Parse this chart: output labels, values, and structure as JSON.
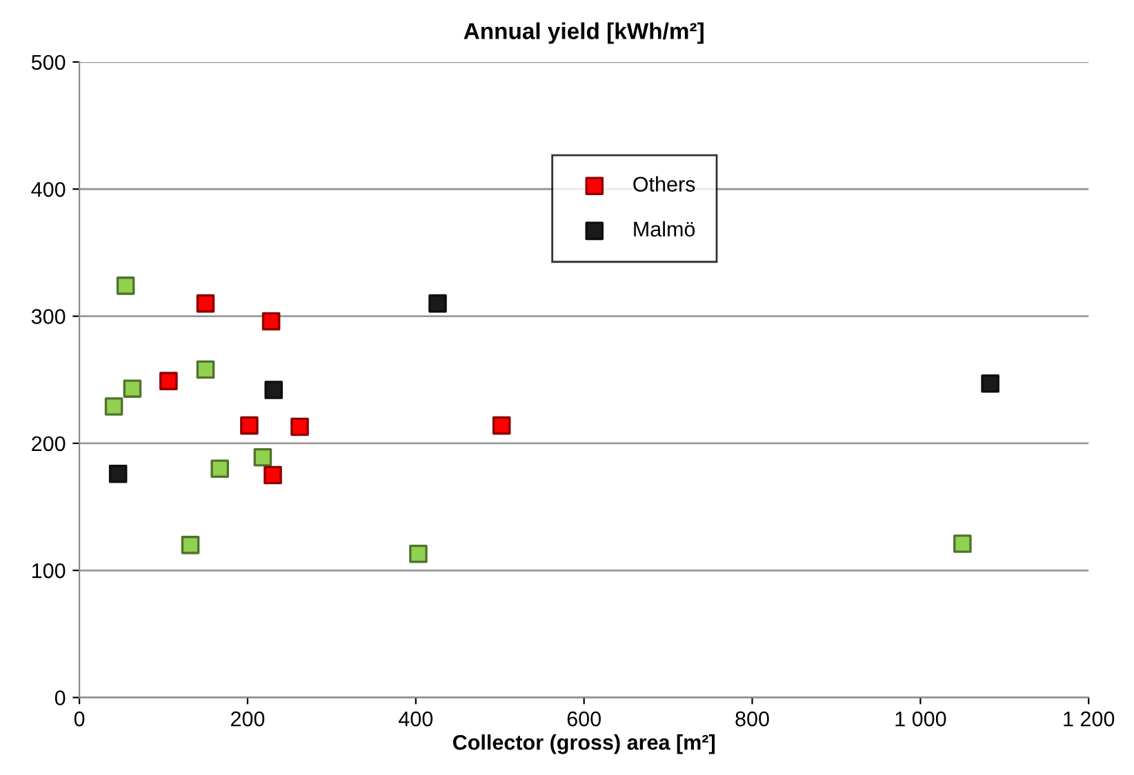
{
  "chart_data": {
    "type": "scatter",
    "title": "Annual yield [kWh/m²]",
    "xlabel": "Collector (gross) area [m²]",
    "xlim": [
      0,
      1200
    ],
    "xticks": [
      0,
      200,
      400,
      600,
      800,
      {
        "value": 1000,
        "label": "1 000"
      },
      {
        "value": 1200,
        "label": "1 200"
      }
    ],
    "ylim": [
      0,
      500
    ],
    "yticks": [
      0,
      100,
      200,
      300,
      400,
      500
    ],
    "grid": "y",
    "legend": "top",
    "marker": "square",
    "series": [
      {
        "color": "#92d050",
        "x": [
          55,
          41,
          63,
          150,
          167,
          218,
          132,
          403,
          1050
        ],
        "values": [
          324,
          229,
          243,
          258,
          180,
          189,
          120,
          113,
          121
        ]
      },
      {
        "name": "Others",
        "color": "#ff0000",
        "x": [
          150,
          228,
          106,
          202,
          262,
          230,
          502
        ],
        "values": [
          310,
          296,
          249,
          214,
          213,
          175,
          214
        ]
      },
      {
        "name": "Malmö",
        "color": "#1a1a1a",
        "x": [
          426,
          231,
          46,
          1083
        ],
        "values": [
          310,
          242,
          176,
          247
        ]
      }
    ]
  }
}
